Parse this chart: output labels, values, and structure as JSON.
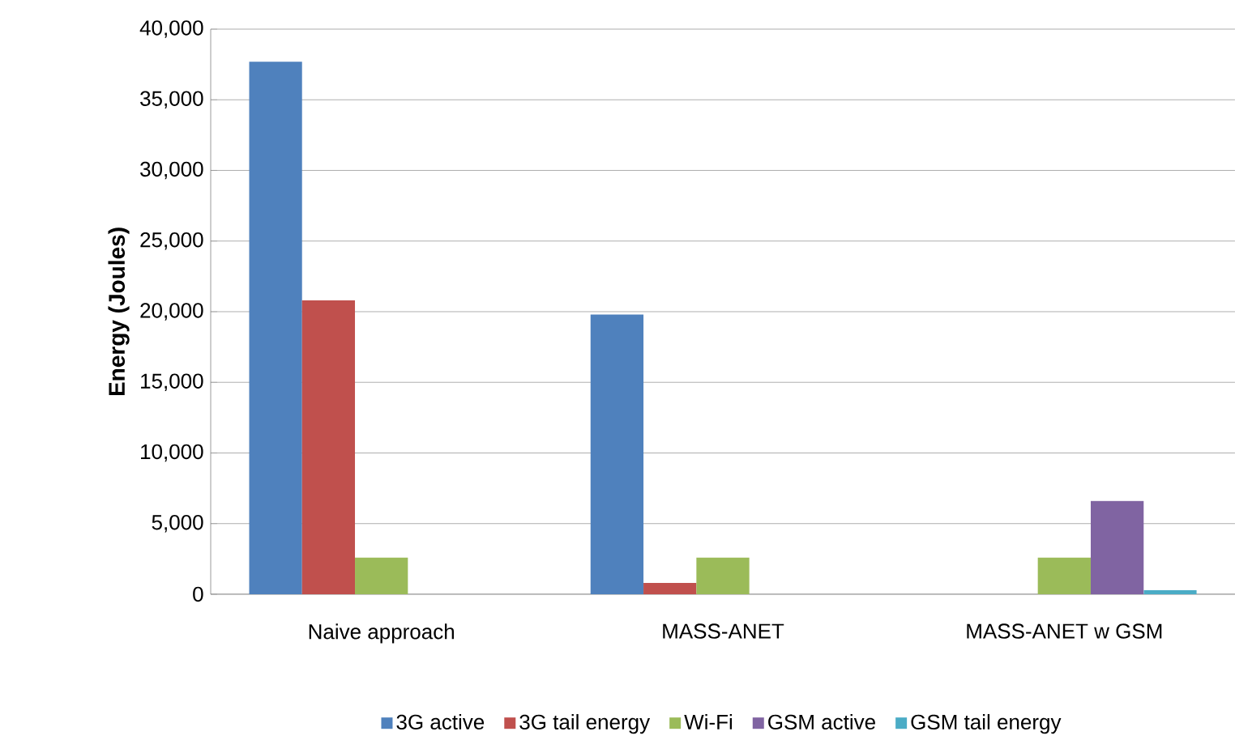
{
  "chart_data": {
    "type": "bar",
    "ylabel": "**Energy (Joules)**",
    "categories": [
      "Naive approach",
      "MASS-ANET",
      "MASS-ANET w GSM"
    ],
    "series": [
      {
        "name": "3G active",
        "color": "#4f81bd",
        "values": [
          37700,
          19800,
          null
        ]
      },
      {
        "name": "3G tail energy",
        "color": "#c0504d",
        "values": [
          20800,
          800,
          null
        ]
      },
      {
        "name": "Wi-Fi",
        "color": "#9bbb59",
        "values": [
          2600,
          2600,
          2600
        ]
      },
      {
        "name": "GSM active",
        "color": "#8064a2",
        "values": [
          null,
          null,
          6600
        ]
      },
      {
        "name": "GSM tail energy",
        "color": "#4bacc6",
        "values": [
          null,
          null,
          300
        ]
      }
    ],
    "ylim": [
      0,
      40000
    ],
    "yticks": [
      {
        "value": 0,
        "label": "0"
      },
      {
        "value": 5000,
        "label": "5,000"
      },
      {
        "value": 10000,
        "label": "10,000"
      },
      {
        "value": 15000,
        "label": "15,000"
      },
      {
        "value": 20000,
        "label": "20,000"
      },
      {
        "value": 25000,
        "label": "25,000"
      },
      {
        "value": 30000,
        "label": "30,000"
      },
      {
        "value": 35000,
        "label": "35,000"
      },
      {
        "value": 40000,
        "label": "40,000"
      }
    ],
    "grid": "y",
    "legend": "bottom"
  }
}
